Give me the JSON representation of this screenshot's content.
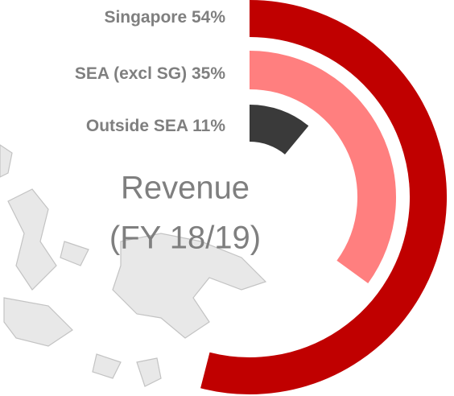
{
  "chart_data": {
    "type": "radial-bar",
    "title": "Revenue",
    "subtitle": "(FY 18/19)",
    "categories": [
      "Singapore",
      "SEA (excl SG)",
      "Outside SEA"
    ],
    "values": [
      54,
      35,
      11
    ],
    "value_labels": [
      "54%",
      "35%",
      "11%"
    ],
    "colors": [
      "#c00000",
      "#ff7f7f",
      "#3a3a3a"
    ],
    "max": 100
  }
}
